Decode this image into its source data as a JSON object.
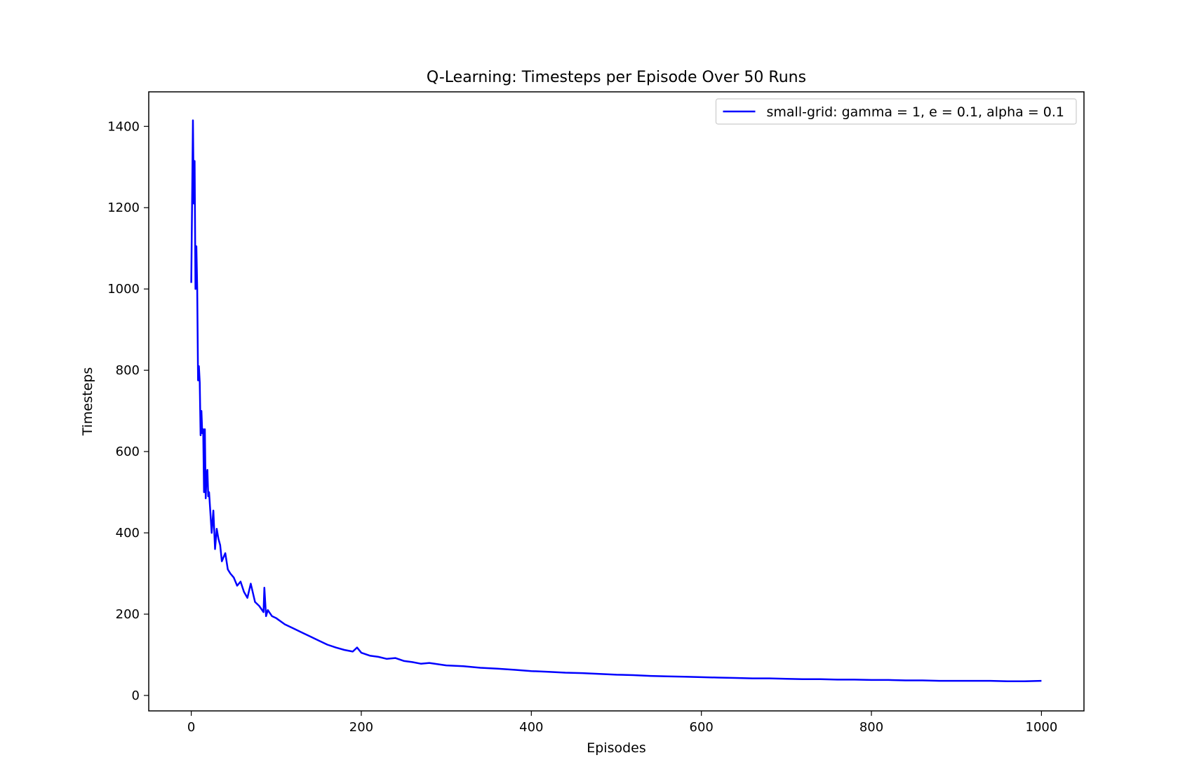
{
  "chart_data": {
    "type": "line",
    "title": "Q-Learning: Timesteps per Episode Over 50 Runs",
    "xlabel": "Episodes",
    "ylabel": "Timesteps",
    "xlim": [
      -50,
      1050
    ],
    "ylim": [
      -38,
      1485
    ],
    "xticks": [
      0,
      200,
      400,
      600,
      800,
      1000
    ],
    "xtick_labels": [
      "0",
      "200",
      "400",
      "600",
      "800",
      "1000"
    ],
    "yticks": [
      0,
      200,
      400,
      600,
      800,
      1000,
      1200,
      1400
    ],
    "ytick_labels": [
      "0",
      "200",
      "400",
      "600",
      "800",
      "1000",
      "1200",
      "1400"
    ],
    "grid": false,
    "legend_position": "top-right",
    "series": [
      {
        "name": "small-grid: gamma = 1, e = 0.1, alpha = 0.1",
        "color": "#0000ff",
        "x": [
          0,
          2,
          3,
          4,
          5,
          6,
          7,
          8,
          9,
          10,
          11,
          12,
          13,
          14,
          15,
          16,
          17,
          18,
          19,
          20,
          21,
          22,
          24,
          26,
          28,
          30,
          32,
          34,
          36,
          38,
          40,
          43,
          46,
          50,
          54,
          58,
          62,
          66,
          70,
          75,
          80,
          85,
          86,
          88,
          90,
          95,
          100,
          110,
          120,
          130,
          140,
          150,
          160,
          170,
          180,
          190,
          195,
          200,
          210,
          220,
          230,
          240,
          250,
          260,
          270,
          280,
          300,
          320,
          340,
          360,
          380,
          400,
          420,
          440,
          460,
          480,
          500,
          520,
          540,
          560,
          580,
          600,
          620,
          640,
          660,
          680,
          700,
          720,
          740,
          760,
          780,
          800,
          820,
          840,
          860,
          880,
          900,
          920,
          940,
          960,
          980,
          1000
        ],
        "y": [
          1015,
          1415,
          1210,
          1315,
          1000,
          1105,
          1000,
          775,
          810,
          770,
          640,
          700,
          645,
          655,
          500,
          655,
          485,
          545,
          555,
          490,
          500,
          465,
          400,
          455,
          360,
          410,
          385,
          370,
          330,
          340,
          350,
          310,
          300,
          290,
          270,
          280,
          255,
          240,
          275,
          230,
          220,
          205,
          265,
          195,
          210,
          195,
          190,
          175,
          165,
          155,
          145,
          135,
          125,
          118,
          112,
          108,
          118,
          105,
          98,
          95,
          90,
          92,
          85,
          82,
          78,
          80,
          74,
          72,
          68,
          66,
          63,
          60,
          58,
          56,
          55,
          53,
          51,
          50,
          48,
          47,
          46,
          45,
          44,
          43,
          42,
          42,
          41,
          40,
          40,
          39,
          39,
          38,
          38,
          37,
          37,
          36,
          36,
          36,
          36,
          35,
          35,
          36
        ]
      }
    ]
  }
}
